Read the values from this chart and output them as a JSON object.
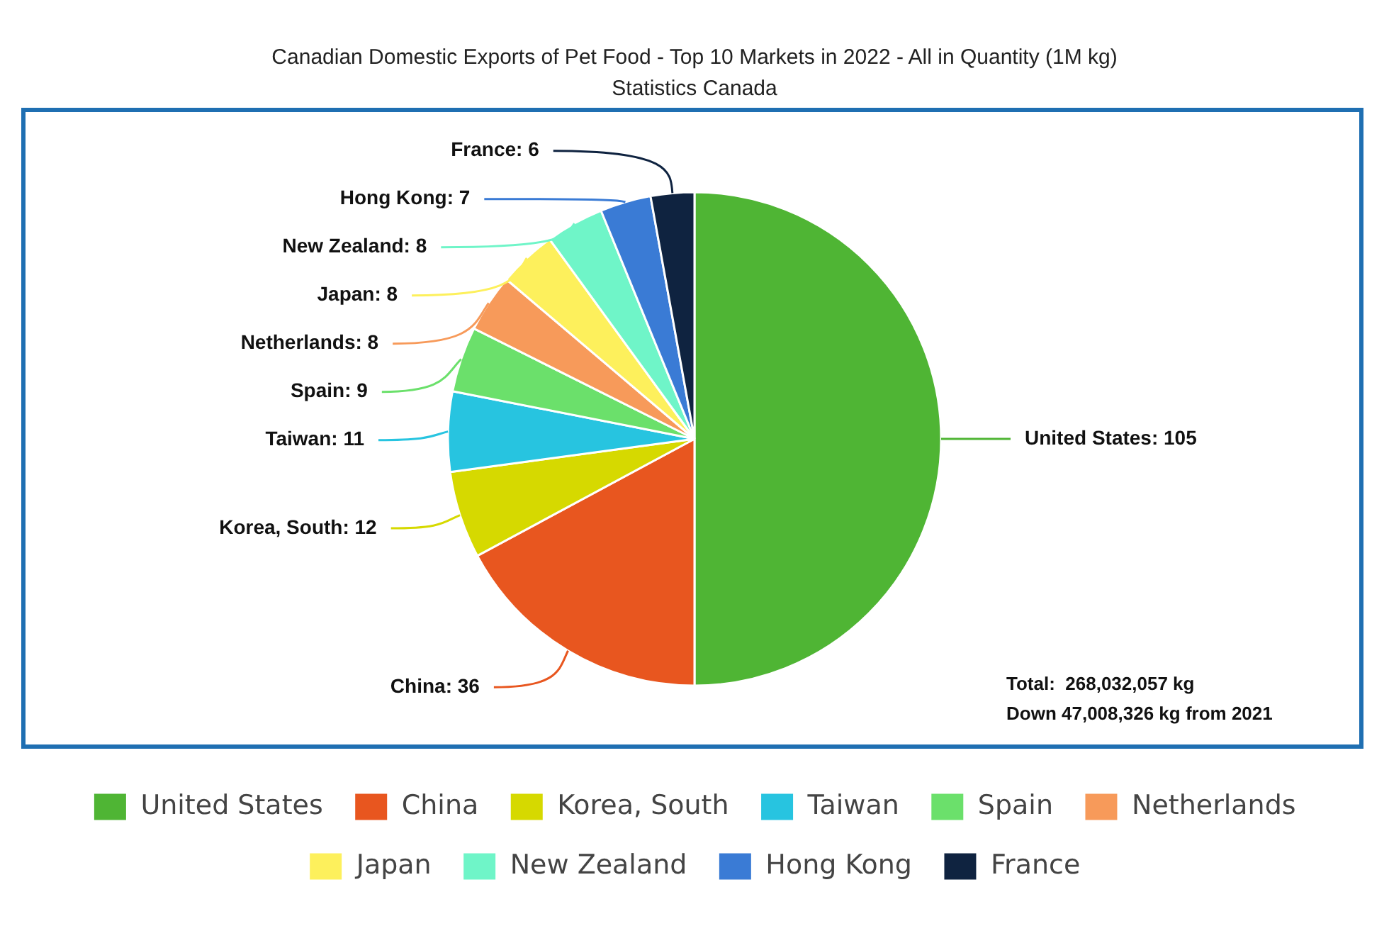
{
  "chart_data": {
    "type": "pie",
    "title": "Canadian Domestic Exports of Pet Food - Top 10 Markets in 2022 - All in Quantity (1M kg)",
    "subtitle": "Statistics Canada",
    "categories": [
      "United States",
      "China",
      "Korea, South",
      "Taiwan",
      "Spain",
      "Netherlands",
      "Japan",
      "New Zealand",
      "Hong Kong",
      "France"
    ],
    "values": [
      105,
      36,
      12,
      11,
      9,
      8,
      8,
      8,
      7,
      6
    ],
    "colors": [
      "#4fb534",
      "#e8561f",
      "#d6d900",
      "#27c4e0",
      "#6be06b",
      "#f79a5a",
      "#fdf05c",
      "#6ff5c8",
      "#3a7bd5",
      "#0f2340"
    ],
    "value_labels": [
      "United States: 105",
      "China: 36",
      "Korea, South: 12",
      "Taiwan: 11",
      "Spain: 9",
      "Netherlands: 8",
      "Japan: 8",
      "New Zealand: 8",
      "Hong Kong: 7",
      "France: 6"
    ],
    "legend": "bottom",
    "annotations": [
      "Total:  268,032,057 kg",
      "Down 47,008,326 kg from 2021"
    ]
  }
}
